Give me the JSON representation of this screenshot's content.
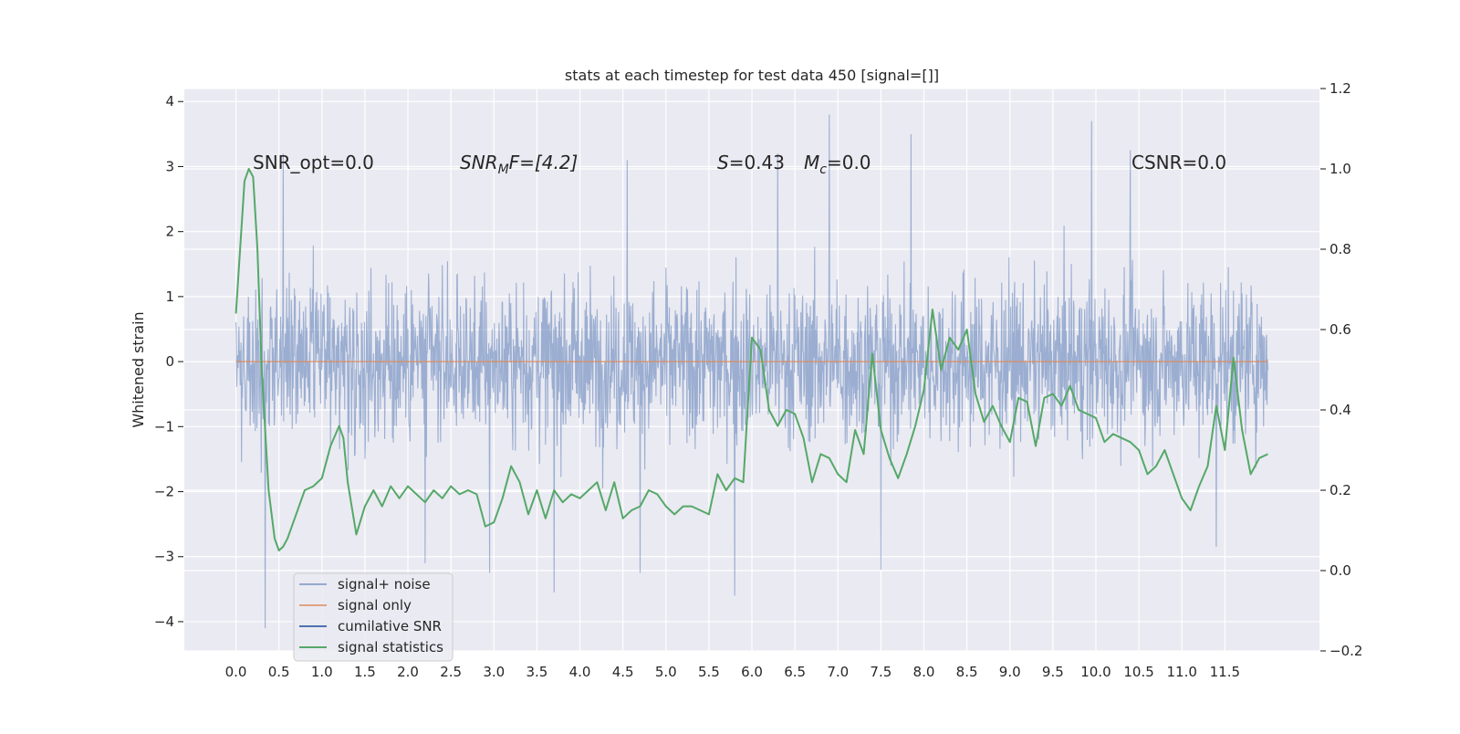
{
  "chart_data": {
    "type": "line",
    "title": "stats at each timestep for test data 450 [signal=[]]",
    "xlabel": "",
    "ylabel": "Whitened strain",
    "y2label": "",
    "xlim": [
      -0.6,
      12.6
    ],
    "ylim": [
      -4.45,
      4.2
    ],
    "y2lim": [
      -0.2,
      1.2
    ],
    "x_ticks": [
      "0.0",
      "0.5",
      "1.0",
      "1.5",
      "2.0",
      "2.5",
      "3.0",
      "3.5",
      "4.0",
      "4.5",
      "5.0",
      "5.5",
      "6.0",
      "6.5",
      "7.0",
      "7.5",
      "8.0",
      "8.5",
      "9.0",
      "9.5",
      "10.0",
      "10.5",
      "11.0",
      "11.5"
    ],
    "y_ticks": [
      "4",
      "3",
      "2",
      "1",
      "0",
      "−1",
      "−2",
      "−3",
      "−4"
    ],
    "y2_ticks": [
      "1.2",
      "1.0",
      "0.8",
      "0.6",
      "0.4",
      "0.2",
      "0.0",
      "−0.2"
    ],
    "grid": true,
    "legend_position": "lower-left",
    "annotations": {
      "snr_opt": "SNR_opt=0.0",
      "snr_mf_main": "SNR",
      "snr_mf_sub": "M",
      "snr_mf_rest": "F=[4.2]",
      "s_sym": "S",
      "s_val": "=0.43",
      "mc_sym": "M",
      "mc_sub": "c",
      "mc_val": "=0.0",
      "csnr": "CSNR=0.0"
    },
    "series": [
      {
        "name": "signal+ noise",
        "color": "#4c72b0",
        "axis": "left",
        "x_range": [
          0,
          12
        ],
        "typical_range": [
          -2.0,
          2.0
        ],
        "peaks": [
          [
            0.34,
            -4.1
          ],
          [
            6.9,
            3.8
          ],
          [
            9.95,
            3.7
          ],
          [
            5.8,
            -3.6
          ],
          [
            3.7,
            -3.55
          ],
          [
            7.85,
            3.5
          ],
          [
            10.4,
            3.25
          ],
          [
            6.3,
            3.2
          ],
          [
            2.95,
            -3.25
          ],
          [
            7.5,
            -3.2
          ],
          [
            4.7,
            -3.25
          ],
          [
            11.4,
            -2.85
          ],
          [
            0.55,
            3.2
          ],
          [
            4.55,
            3.1
          ],
          [
            2.2,
            -3.1
          ]
        ]
      },
      {
        "name": "signal only",
        "color": "#dd8452",
        "axis": "left",
        "x": [
          0,
          12
        ],
        "y": [
          0,
          0
        ]
      },
      {
        "name": "cumilative SNR",
        "color": "#4c72b0",
        "axis": "right",
        "x": [],
        "y": []
      },
      {
        "name": "signal statistics",
        "color": "#55a868",
        "axis": "right",
        "x": [
          0.0,
          0.1,
          0.15,
          0.2,
          0.25,
          0.3,
          0.38,
          0.45,
          0.5,
          0.55,
          0.6,
          0.7,
          0.8,
          0.9,
          1.0,
          1.1,
          1.2,
          1.25,
          1.3,
          1.4,
          1.5,
          1.6,
          1.7,
          1.8,
          1.9,
          2.0,
          2.1,
          2.2,
          2.3,
          2.4,
          2.5,
          2.6,
          2.7,
          2.8,
          2.9,
          3.0,
          3.1,
          3.2,
          3.3,
          3.4,
          3.5,
          3.6,
          3.7,
          3.8,
          3.9,
          4.0,
          4.1,
          4.2,
          4.3,
          4.4,
          4.5,
          4.6,
          4.7,
          4.8,
          4.9,
          5.0,
          5.1,
          5.2,
          5.3,
          5.4,
          5.5,
          5.6,
          5.7,
          5.8,
          5.9,
          6.0,
          6.1,
          6.2,
          6.3,
          6.4,
          6.5,
          6.6,
          6.7,
          6.8,
          6.9,
          7.0,
          7.1,
          7.2,
          7.3,
          7.4,
          7.5,
          7.6,
          7.7,
          7.8,
          7.9,
          8.0,
          8.1,
          8.2,
          8.3,
          8.4,
          8.5,
          8.6,
          8.7,
          8.8,
          8.9,
          9.0,
          9.1,
          9.2,
          9.3,
          9.4,
          9.5,
          9.6,
          9.7,
          9.8,
          9.9,
          10.0,
          10.1,
          10.2,
          10.3,
          10.4,
          10.5,
          10.6,
          10.7,
          10.8,
          10.9,
          11.0,
          11.1,
          11.2,
          11.3,
          11.4,
          11.5,
          11.6,
          11.7,
          11.8,
          11.9,
          12.0
        ],
        "y": [
          0.64,
          0.97,
          1.0,
          0.98,
          0.8,
          0.5,
          0.2,
          0.08,
          0.05,
          0.06,
          0.08,
          0.14,
          0.2,
          0.21,
          0.23,
          0.31,
          0.36,
          0.33,
          0.22,
          0.09,
          0.16,
          0.2,
          0.16,
          0.21,
          0.18,
          0.21,
          0.19,
          0.17,
          0.2,
          0.18,
          0.21,
          0.19,
          0.2,
          0.19,
          0.11,
          0.12,
          0.18,
          0.26,
          0.22,
          0.14,
          0.2,
          0.13,
          0.2,
          0.17,
          0.19,
          0.18,
          0.2,
          0.22,
          0.15,
          0.22,
          0.13,
          0.15,
          0.16,
          0.2,
          0.19,
          0.16,
          0.14,
          0.16,
          0.16,
          0.15,
          0.14,
          0.24,
          0.2,
          0.23,
          0.22,
          0.58,
          0.55,
          0.4,
          0.36,
          0.4,
          0.39,
          0.33,
          0.22,
          0.29,
          0.28,
          0.24,
          0.22,
          0.35,
          0.29,
          0.54,
          0.35,
          0.28,
          0.23,
          0.29,
          0.36,
          0.45,
          0.65,
          0.5,
          0.58,
          0.55,
          0.6,
          0.44,
          0.37,
          0.41,
          0.36,
          0.32,
          0.43,
          0.42,
          0.31,
          0.43,
          0.44,
          0.41,
          0.46,
          0.4,
          0.39,
          0.38,
          0.32,
          0.34,
          0.33,
          0.32,
          0.3,
          0.24,
          0.26,
          0.3,
          0.24,
          0.18,
          0.15,
          0.21,
          0.26,
          0.41,
          0.3,
          0.53,
          0.35,
          0.24,
          0.28,
          0.29
        ]
      }
    ]
  }
}
